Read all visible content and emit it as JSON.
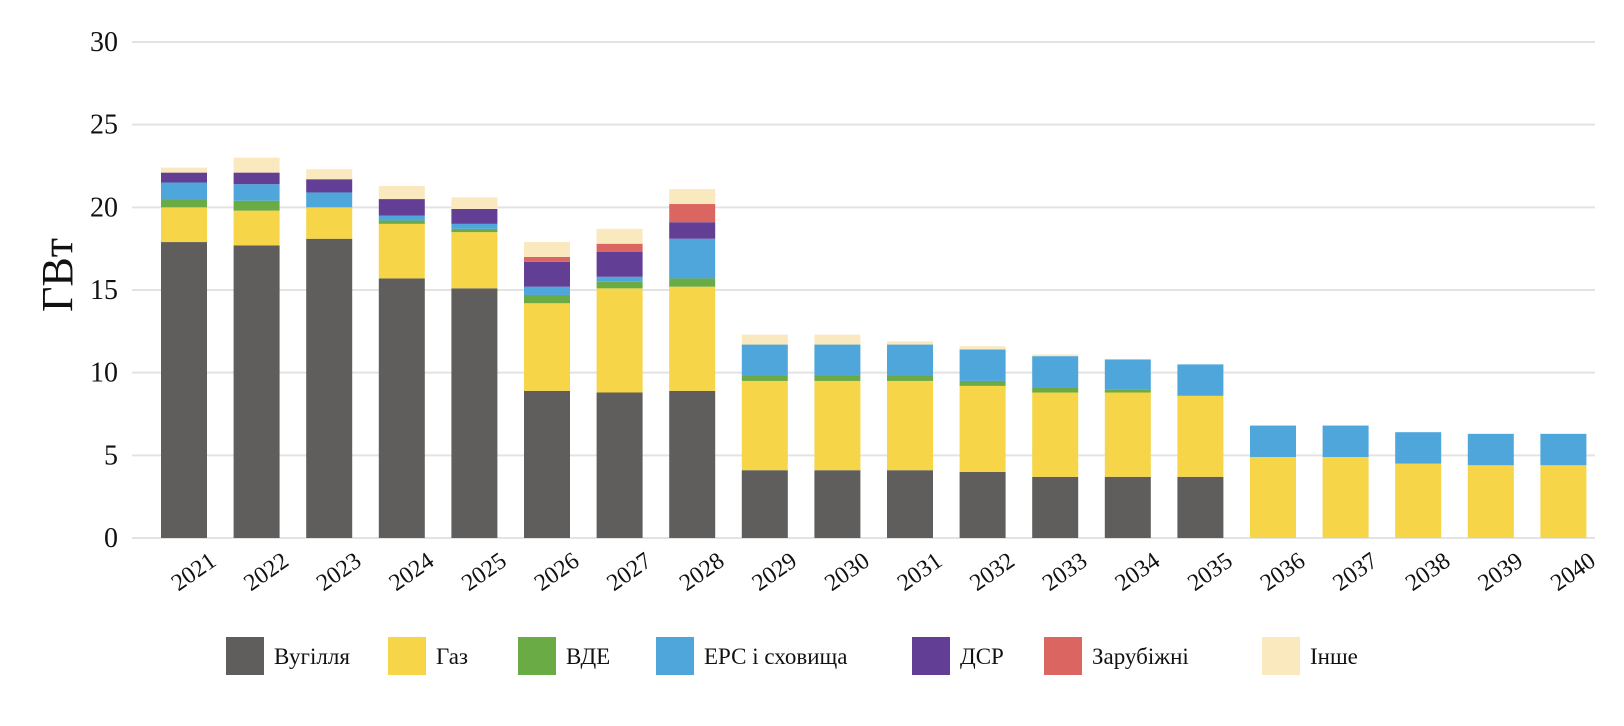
{
  "chart_data": {
    "type": "bar",
    "stacked": true,
    "ylabel": "ГВт",
    "xlabel": "",
    "ylim": [
      0,
      30
    ],
    "yticks": [
      "0",
      "5",
      "10",
      "15",
      "20",
      "25",
      "30"
    ],
    "grid": true,
    "legend_position": "bottom",
    "categories": [
      "2021",
      "2022",
      "2023",
      "2024",
      "2025",
      "2026",
      "2027",
      "2028",
      "2029",
      "2030",
      "2031",
      "2032",
      "2033",
      "2034",
      "2035",
      "2036",
      "2037",
      "2038",
      "2039",
      "2040"
    ],
    "series": [
      {
        "name": "Вугілля",
        "color": "#5f5e5c",
        "values": [
          17.9,
          17.7,
          18.1,
          15.7,
          15.1,
          8.9,
          8.8,
          8.9,
          4.1,
          4.1,
          4.1,
          4.0,
          3.7,
          3.7,
          3.7,
          0,
          0,
          0,
          0,
          0
        ]
      },
      {
        "name": "Газ",
        "color": "#f6d548",
        "values": [
          2.1,
          2.1,
          1.9,
          3.3,
          3.4,
          5.3,
          6.3,
          6.3,
          5.4,
          5.4,
          5.4,
          5.2,
          5.1,
          5.1,
          4.9,
          4.9,
          4.9,
          4.5,
          4.4,
          4.4
        ]
      },
      {
        "name": "ВДЕ",
        "color": "#6aab46",
        "values": [
          0.5,
          0.6,
          0.0,
          0.2,
          0.2,
          0.5,
          0.4,
          0.5,
          0.3,
          0.3,
          0.3,
          0.3,
          0.3,
          0.2,
          0.0,
          0,
          0,
          0,
          0,
          0
        ]
      },
      {
        "name": "ЕРС і сховища",
        "color": "#4ea6da",
        "values": [
          1.0,
          1.0,
          0.9,
          0.3,
          0.3,
          0.5,
          0.3,
          2.4,
          1.9,
          1.9,
          1.9,
          1.9,
          1.9,
          1.8,
          1.9,
          1.9,
          1.9,
          1.9,
          1.9,
          1.9
        ]
      },
      {
        "name": "ДСР",
        "color": "#623f95",
        "values": [
          0.6,
          0.7,
          0.8,
          1.0,
          0.9,
          1.5,
          1.5,
          1.0,
          0,
          0,
          0,
          0,
          0,
          0,
          0,
          0,
          0,
          0,
          0,
          0
        ]
      },
      {
        "name": "Зарубіжні",
        "color": "#db6560",
        "values": [
          0,
          0,
          0,
          0,
          0,
          0.3,
          0.5,
          1.1,
          0,
          0,
          0,
          0,
          0,
          0,
          0,
          0,
          0,
          0,
          0,
          0
        ]
      },
      {
        "name": "Інше",
        "color": "#fae8bf",
        "values": [
          0.3,
          0.9,
          0.6,
          0.8,
          0.7,
          0.9,
          0.9,
          0.9,
          0.6,
          0.6,
          0.2,
          0.2,
          0.1,
          0.0,
          0.0,
          0,
          0,
          0,
          0,
          0
        ]
      }
    ]
  }
}
